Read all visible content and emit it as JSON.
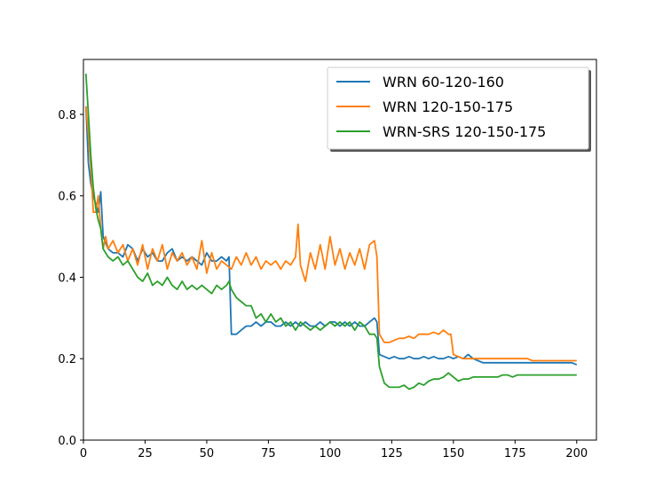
{
  "chart_data": {
    "type": "line",
    "title": "",
    "xlabel": "",
    "ylabel": "",
    "xlim": [
      0,
      208
    ],
    "ylim": [
      0.0,
      0.935
    ],
    "xticks": [
      0,
      25,
      50,
      75,
      100,
      125,
      150,
      175,
      200
    ],
    "yticks": [
      0.0,
      0.2,
      0.4,
      0.6,
      0.8
    ],
    "grid": false,
    "legend_position": "top-right",
    "series": [
      {
        "name": "WRN 60-120-160",
        "color": "#1f77b4",
        "points": [
          [
            1,
            0.82
          ],
          [
            2,
            0.68
          ],
          [
            3,
            0.63
          ],
          [
            4,
            0.6
          ],
          [
            5,
            0.58
          ],
          [
            6,
            0.56
          ],
          [
            7,
            0.61
          ],
          [
            8,
            0.5
          ],
          [
            10,
            0.47
          ],
          [
            12,
            0.46
          ],
          [
            14,
            0.46
          ],
          [
            16,
            0.45
          ],
          [
            18,
            0.48
          ],
          [
            20,
            0.47
          ],
          [
            22,
            0.44
          ],
          [
            24,
            0.47
          ],
          [
            26,
            0.45
          ],
          [
            28,
            0.46
          ],
          [
            30,
            0.44
          ],
          [
            32,
            0.44
          ],
          [
            34,
            0.46
          ],
          [
            36,
            0.47
          ],
          [
            38,
            0.44
          ],
          [
            40,
            0.45
          ],
          [
            42,
            0.44
          ],
          [
            44,
            0.45
          ],
          [
            46,
            0.44
          ],
          [
            48,
            0.43
          ],
          [
            50,
            0.46
          ],
          [
            52,
            0.44
          ],
          [
            54,
            0.44
          ],
          [
            56,
            0.45
          ],
          [
            58,
            0.44
          ],
          [
            59,
            0.45
          ],
          [
            60,
            0.26
          ],
          [
            62,
            0.26
          ],
          [
            64,
            0.27
          ],
          [
            66,
            0.28
          ],
          [
            68,
            0.28
          ],
          [
            70,
            0.29
          ],
          [
            72,
            0.28
          ],
          [
            74,
            0.29
          ],
          [
            76,
            0.29
          ],
          [
            78,
            0.28
          ],
          [
            80,
            0.28
          ],
          [
            82,
            0.29
          ],
          [
            84,
            0.28
          ],
          [
            86,
            0.29
          ],
          [
            88,
            0.28
          ],
          [
            90,
            0.29
          ],
          [
            92,
            0.28
          ],
          [
            94,
            0.28
          ],
          [
            96,
            0.29
          ],
          [
            98,
            0.28
          ],
          [
            100,
            0.29
          ],
          [
            102,
            0.29
          ],
          [
            104,
            0.28
          ],
          [
            106,
            0.29
          ],
          [
            108,
            0.28
          ],
          [
            110,
            0.29
          ],
          [
            112,
            0.28
          ],
          [
            114,
            0.28
          ],
          [
            116,
            0.29
          ],
          [
            118,
            0.3
          ],
          [
            119,
            0.29
          ],
          [
            120,
            0.21
          ],
          [
            122,
            0.205
          ],
          [
            124,
            0.2
          ],
          [
            126,
            0.205
          ],
          [
            128,
            0.2
          ],
          [
            130,
            0.2
          ],
          [
            132,
            0.205
          ],
          [
            134,
            0.2
          ],
          [
            136,
            0.2
          ],
          [
            138,
            0.205
          ],
          [
            140,
            0.2
          ],
          [
            142,
            0.205
          ],
          [
            144,
            0.2
          ],
          [
            146,
            0.2
          ],
          [
            148,
            0.205
          ],
          [
            150,
            0.2
          ],
          [
            152,
            0.205
          ],
          [
            154,
            0.2
          ],
          [
            156,
            0.21
          ],
          [
            158,
            0.2
          ],
          [
            160,
            0.195
          ],
          [
            162,
            0.19
          ],
          [
            164,
            0.19
          ],
          [
            166,
            0.19
          ],
          [
            168,
            0.19
          ],
          [
            170,
            0.19
          ],
          [
            172,
            0.19
          ],
          [
            174,
            0.19
          ],
          [
            176,
            0.19
          ],
          [
            178,
            0.19
          ],
          [
            180,
            0.19
          ],
          [
            182,
            0.19
          ],
          [
            184,
            0.19
          ],
          [
            186,
            0.19
          ],
          [
            188,
            0.19
          ],
          [
            190,
            0.19
          ],
          [
            192,
            0.19
          ],
          [
            194,
            0.19
          ],
          [
            196,
            0.19
          ],
          [
            198,
            0.19
          ],
          [
            200,
            0.185
          ]
        ]
      },
      {
        "name": "WRN 120-150-175",
        "color": "#ff7f0e",
        "points": [
          [
            1,
            0.82
          ],
          [
            2,
            0.75
          ],
          [
            3,
            0.67
          ],
          [
            4,
            0.56
          ],
          [
            5,
            0.56
          ],
          [
            6,
            0.6
          ],
          [
            7,
            0.52
          ],
          [
            8,
            0.47
          ],
          [
            9,
            0.5
          ],
          [
            10,
            0.47
          ],
          [
            12,
            0.49
          ],
          [
            14,
            0.46
          ],
          [
            16,
            0.48
          ],
          [
            18,
            0.44
          ],
          [
            20,
            0.47
          ],
          [
            22,
            0.43
          ],
          [
            24,
            0.48
          ],
          [
            26,
            0.42
          ],
          [
            28,
            0.47
          ],
          [
            30,
            0.44
          ],
          [
            32,
            0.48
          ],
          [
            34,
            0.42
          ],
          [
            36,
            0.46
          ],
          [
            38,
            0.44
          ],
          [
            40,
            0.46
          ],
          [
            42,
            0.43
          ],
          [
            44,
            0.45
          ],
          [
            46,
            0.42
          ],
          [
            48,
            0.49
          ],
          [
            50,
            0.41
          ],
          [
            52,
            0.46
          ],
          [
            54,
            0.42
          ],
          [
            56,
            0.44
          ],
          [
            58,
            0.43
          ],
          [
            60,
            0.42
          ],
          [
            62,
            0.45
          ],
          [
            64,
            0.43
          ],
          [
            66,
            0.46
          ],
          [
            68,
            0.43
          ],
          [
            70,
            0.45
          ],
          [
            72,
            0.42
          ],
          [
            74,
            0.44
          ],
          [
            76,
            0.43
          ],
          [
            78,
            0.44
          ],
          [
            80,
            0.42
          ],
          [
            82,
            0.44
          ],
          [
            84,
            0.43
          ],
          [
            86,
            0.45
          ],
          [
            87,
            0.53
          ],
          [
            88,
            0.43
          ],
          [
            90,
            0.39
          ],
          [
            92,
            0.46
          ],
          [
            94,
            0.42
          ],
          [
            96,
            0.48
          ],
          [
            98,
            0.42
          ],
          [
            100,
            0.5
          ],
          [
            102,
            0.43
          ],
          [
            104,
            0.47
          ],
          [
            106,
            0.42
          ],
          [
            108,
            0.46
          ],
          [
            110,
            0.43
          ],
          [
            112,
            0.47
          ],
          [
            114,
            0.42
          ],
          [
            116,
            0.48
          ],
          [
            118,
            0.49
          ],
          [
            119,
            0.45
          ],
          [
            120,
            0.26
          ],
          [
            122,
            0.24
          ],
          [
            124,
            0.24
          ],
          [
            126,
            0.245
          ],
          [
            128,
            0.25
          ],
          [
            130,
            0.25
          ],
          [
            132,
            0.255
          ],
          [
            134,
            0.25
          ],
          [
            136,
            0.26
          ],
          [
            138,
            0.26
          ],
          [
            140,
            0.26
          ],
          [
            142,
            0.265
          ],
          [
            144,
            0.26
          ],
          [
            146,
            0.27
          ],
          [
            148,
            0.26
          ],
          [
            149,
            0.26
          ],
          [
            150,
            0.21
          ],
          [
            152,
            0.205
          ],
          [
            154,
            0.2
          ],
          [
            156,
            0.2
          ],
          [
            158,
            0.2
          ],
          [
            160,
            0.2
          ],
          [
            162,
            0.2
          ],
          [
            164,
            0.2
          ],
          [
            166,
            0.2
          ],
          [
            168,
            0.2
          ],
          [
            170,
            0.2
          ],
          [
            172,
            0.2
          ],
          [
            174,
            0.2
          ],
          [
            176,
            0.2
          ],
          [
            178,
            0.2
          ],
          [
            180,
            0.2
          ],
          [
            182,
            0.195
          ],
          [
            184,
            0.195
          ],
          [
            186,
            0.195
          ],
          [
            188,
            0.195
          ],
          [
            190,
            0.195
          ],
          [
            192,
            0.195
          ],
          [
            194,
            0.195
          ],
          [
            196,
            0.195
          ],
          [
            198,
            0.195
          ],
          [
            200,
            0.195
          ]
        ]
      },
      {
        "name": "WRN-SRS 120-150-175",
        "color": "#2ca02c",
        "points": [
          [
            1,
            0.9
          ],
          [
            2,
            0.8
          ],
          [
            3,
            0.7
          ],
          [
            4,
            0.62
          ],
          [
            5,
            0.57
          ],
          [
            6,
            0.54
          ],
          [
            7,
            0.52
          ],
          [
            8,
            0.47
          ],
          [
            10,
            0.45
          ],
          [
            12,
            0.44
          ],
          [
            14,
            0.45
          ],
          [
            16,
            0.43
          ],
          [
            18,
            0.44
          ],
          [
            20,
            0.42
          ],
          [
            22,
            0.4
          ],
          [
            24,
            0.39
          ],
          [
            26,
            0.41
          ],
          [
            28,
            0.38
          ],
          [
            30,
            0.39
          ],
          [
            32,
            0.38
          ],
          [
            34,
            0.4
          ],
          [
            36,
            0.38
          ],
          [
            38,
            0.37
          ],
          [
            40,
            0.39
          ],
          [
            42,
            0.37
          ],
          [
            44,
            0.38
          ],
          [
            46,
            0.37
          ],
          [
            48,
            0.38
          ],
          [
            50,
            0.37
          ],
          [
            52,
            0.36
          ],
          [
            54,
            0.38
          ],
          [
            56,
            0.37
          ],
          [
            58,
            0.38
          ],
          [
            59,
            0.39
          ],
          [
            60,
            0.37
          ],
          [
            62,
            0.35
          ],
          [
            64,
            0.34
          ],
          [
            66,
            0.33
          ],
          [
            68,
            0.33
          ],
          [
            70,
            0.3
          ],
          [
            72,
            0.31
          ],
          [
            74,
            0.29
          ],
          [
            76,
            0.31
          ],
          [
            78,
            0.29
          ],
          [
            80,
            0.3
          ],
          [
            82,
            0.28
          ],
          [
            84,
            0.29
          ],
          [
            86,
            0.27
          ],
          [
            88,
            0.29
          ],
          [
            90,
            0.28
          ],
          [
            92,
            0.27
          ],
          [
            94,
            0.28
          ],
          [
            96,
            0.27
          ],
          [
            98,
            0.28
          ],
          [
            100,
            0.29
          ],
          [
            102,
            0.28
          ],
          [
            104,
            0.29
          ],
          [
            106,
            0.28
          ],
          [
            108,
            0.29
          ],
          [
            110,
            0.27
          ],
          [
            112,
            0.29
          ],
          [
            114,
            0.28
          ],
          [
            116,
            0.26
          ],
          [
            118,
            0.26
          ],
          [
            119,
            0.25
          ],
          [
            120,
            0.18
          ],
          [
            122,
            0.14
          ],
          [
            124,
            0.13
          ],
          [
            126,
            0.13
          ],
          [
            128,
            0.13
          ],
          [
            130,
            0.135
          ],
          [
            132,
            0.125
          ],
          [
            134,
            0.13
          ],
          [
            136,
            0.14
          ],
          [
            138,
            0.135
          ],
          [
            140,
            0.145
          ],
          [
            142,
            0.15
          ],
          [
            144,
            0.15
          ],
          [
            146,
            0.155
          ],
          [
            148,
            0.165
          ],
          [
            150,
            0.155
          ],
          [
            152,
            0.145
          ],
          [
            154,
            0.15
          ],
          [
            156,
            0.15
          ],
          [
            158,
            0.155
          ],
          [
            160,
            0.155
          ],
          [
            162,
            0.155
          ],
          [
            164,
            0.155
          ],
          [
            166,
            0.155
          ],
          [
            168,
            0.155
          ],
          [
            170,
            0.16
          ],
          [
            172,
            0.16
          ],
          [
            174,
            0.155
          ],
          [
            176,
            0.16
          ],
          [
            178,
            0.16
          ],
          [
            180,
            0.16
          ],
          [
            182,
            0.16
          ],
          [
            184,
            0.16
          ],
          [
            186,
            0.16
          ],
          [
            188,
            0.16
          ],
          [
            190,
            0.16
          ],
          [
            192,
            0.16
          ],
          [
            194,
            0.16
          ],
          [
            196,
            0.16
          ],
          [
            198,
            0.16
          ],
          [
            200,
            0.16
          ]
        ]
      }
    ]
  }
}
